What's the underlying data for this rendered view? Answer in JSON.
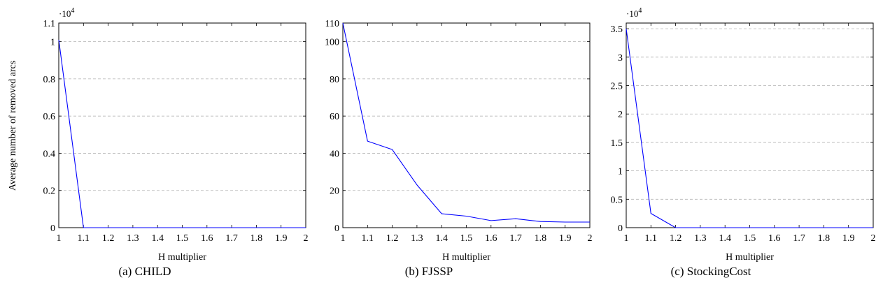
{
  "figure": {
    "shared_ylabel": "Average number of removed arcs"
  },
  "chart_data": [
    {
      "type": "line",
      "caption": "(a) CHILD",
      "xlabel": "H multiplier",
      "ylabel": "Average number of removed arcs",
      "exponent_label": "·10",
      "exponent_power": "4",
      "xlim": [
        1,
        2
      ],
      "ylim": [
        0,
        1.1
      ],
      "x_ticks": [
        1,
        1.1,
        1.2,
        1.3,
        1.4,
        1.5,
        1.6,
        1.7,
        1.8,
        1.9,
        2
      ],
      "x_tick_labels": [
        "1",
        "1.1",
        "1.2",
        "1.3",
        "1.4",
        "1.5",
        "1.6",
        "1.7",
        "1.8",
        "1.9",
        "2"
      ],
      "y_ticks": [
        0,
        0.2,
        0.4,
        0.6,
        0.8,
        1,
        1.1
      ],
      "y_tick_labels": [
        "0",
        "0.2",
        "0.4",
        "0.6",
        "0.8",
        "1",
        "1.1"
      ],
      "grid_y": [
        0.2,
        0.4,
        0.6,
        0.8,
        1.0
      ],
      "color": "#0000ff",
      "series": [
        {
          "x": [
            1,
            1.1,
            1.2,
            1.3,
            1.4,
            1.5,
            1.6,
            1.7,
            1.8,
            1.9,
            2
          ],
          "values": [
            1.01,
            0,
            0,
            0,
            0,
            0,
            0,
            0,
            0,
            0,
            0
          ]
        }
      ]
    },
    {
      "type": "line",
      "caption": "(b) FJSSP",
      "xlabel": "H multiplier",
      "ylabel": "",
      "exponent_label": "",
      "exponent_power": "",
      "xlim": [
        1,
        2
      ],
      "ylim": [
        0,
        110
      ],
      "x_ticks": [
        1,
        1.1,
        1.2,
        1.3,
        1.4,
        1.5,
        1.6,
        1.7,
        1.8,
        1.9,
        2
      ],
      "x_tick_labels": [
        "1",
        "1.1",
        "1.2",
        "1.3",
        "1.4",
        "1.5",
        "1.6",
        "1.7",
        "1.8",
        "1.9",
        "2"
      ],
      "y_ticks": [
        0,
        20,
        40,
        60,
        80,
        100,
        110
      ],
      "y_tick_labels": [
        "0",
        "20",
        "40",
        "60",
        "80",
        "100",
        "110"
      ],
      "grid_y": [
        20,
        40,
        60,
        80,
        100
      ],
      "color": "#0000ff",
      "series": [
        {
          "x": [
            1,
            1.1,
            1.2,
            1.3,
            1.4,
            1.5,
            1.6,
            1.7,
            1.8,
            1.9,
            2
          ],
          "values": [
            110,
            46.5,
            42,
            23,
            7.5,
            6.2,
            3.8,
            4.8,
            3.3,
            3,
            3
          ]
        }
      ]
    },
    {
      "type": "line",
      "caption": "(c) StockingCost",
      "xlabel": "H multiplier",
      "ylabel": "",
      "exponent_label": "·10",
      "exponent_power": "4",
      "xlim": [
        1,
        2
      ],
      "ylim": [
        0,
        3.6
      ],
      "x_ticks": [
        1,
        1.1,
        1.2,
        1.3,
        1.4,
        1.5,
        1.6,
        1.7,
        1.8,
        1.9,
        2
      ],
      "x_tick_labels": [
        "1",
        "1.1",
        "1.2",
        "1.3",
        "1.4",
        "1.5",
        "1.6",
        "1.7",
        "1.8",
        "1.9",
        "2"
      ],
      "y_ticks": [
        0,
        0.5,
        1,
        1.5,
        2,
        2.5,
        3,
        3.5
      ],
      "y_tick_labels": [
        "0",
        "0.5",
        "1",
        "1.5",
        "2",
        "2.5",
        "3",
        "3.5"
      ],
      "grid_y": [
        0.5,
        1,
        1.5,
        2,
        2.5,
        3,
        3.5
      ],
      "color": "#0000ff",
      "series": [
        {
          "x": [
            1,
            1.1,
            1.2,
            1.3,
            1.4,
            1.5,
            1.6,
            1.7,
            1.8,
            1.9,
            2
          ],
          "values": [
            3.5,
            0.25,
            0,
            0,
            0,
            0,
            0,
            0,
            0,
            0,
            0
          ]
        }
      ]
    }
  ]
}
